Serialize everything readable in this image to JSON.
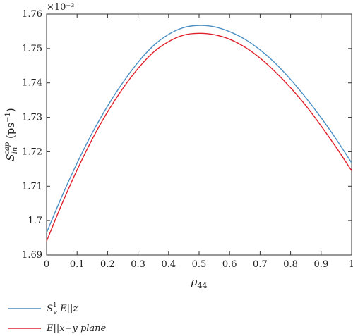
{
  "chart_data": {
    "type": "line",
    "xlabel": "ρ44",
    "ylabel": "S_in^cap (ps⁻¹)",
    "y_multiplier": "×10⁻³",
    "xlim": [
      0,
      1
    ],
    "ylim": [
      1.69,
      1.76
    ],
    "xticks": [
      0,
      0.1,
      0.2,
      0.3,
      0.4,
      0.5,
      0.6,
      0.7,
      0.8,
      0.9,
      1
    ],
    "xtick_labels": [
      "0",
      "0.1",
      "0.2",
      "0.3",
      "0.4",
      "0.5",
      "0.6",
      "0.7",
      "0.8",
      "0.9",
      "1"
    ],
    "yticks": [
      1.69,
      1.7,
      1.71,
      1.72,
      1.73,
      1.74,
      1.75,
      1.76
    ],
    "ytick_labels": [
      "1.69",
      "1.7",
      "1.71",
      "1.72",
      "1.73",
      "1.74",
      "1.75",
      "1.76"
    ],
    "grid": false,
    "legend_position": "below",
    "x": [
      0,
      0.05,
      0.1,
      0.15,
      0.2,
      0.25,
      0.3,
      0.35,
      0.4,
      0.45,
      0.5,
      0.55,
      0.6,
      0.65,
      0.7,
      0.75,
      0.8,
      0.85,
      0.9,
      0.95,
      1
    ],
    "series": [
      {
        "name": "S_e^1 E||z",
        "color": "#4a8fc4",
        "values": [
          1.6965,
          1.707,
          1.7167,
          1.7255,
          1.7333,
          1.7401,
          1.746,
          1.7508,
          1.7541,
          1.7561,
          1.7567,
          1.7563,
          1.7549,
          1.7527,
          1.7496,
          1.7457,
          1.741,
          1.7357,
          1.7299,
          1.7236,
          1.7168
        ]
      },
      {
        "name": "E||x−y plane",
        "color": "#e0202a",
        "values": [
          1.694,
          1.7048,
          1.7147,
          1.7237,
          1.7316,
          1.7384,
          1.7442,
          1.7489,
          1.752,
          1.7539,
          1.7544,
          1.754,
          1.7527,
          1.7504,
          1.7472,
          1.7432,
          1.7386,
          1.7334,
          1.7275,
          1.7212,
          1.7145
        ]
      }
    ]
  },
  "legend": {
    "entries": [
      {
        "prefix": "S",
        "sup": "1",
        "sub": "e",
        "suffix": " E||z"
      },
      {
        "prefix": "",
        "sup": "",
        "sub": "",
        "suffix": "E||x−y plane"
      }
    ]
  }
}
